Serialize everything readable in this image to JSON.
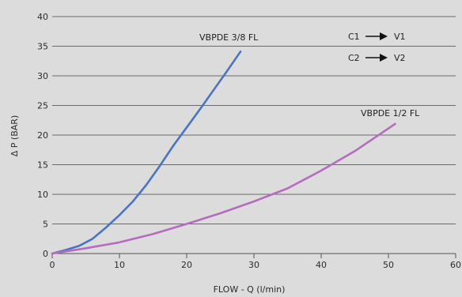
{
  "chart_data": {
    "type": "line",
    "title": "",
    "xlabel": "FLOW - Q (l/min)",
    "ylabel": "Δ P (BAR)",
    "xlim": [
      0,
      60
    ],
    "ylim": [
      0,
      40
    ],
    "x_ticks": [
      0,
      10,
      20,
      30,
      40,
      50,
      60
    ],
    "y_ticks": [
      0,
      5,
      10,
      15,
      20,
      25,
      30,
      35,
      40
    ],
    "grid": "horizontal",
    "series": [
      {
        "name": "VBPDE 3/8 FL",
        "color": "#4a74c4",
        "points": [
          [
            0,
            0
          ],
          [
            2,
            0.6
          ],
          [
            4,
            1.3
          ],
          [
            6,
            2.5
          ],
          [
            8,
            4.4
          ],
          [
            10,
            6.5
          ],
          [
            12,
            8.8
          ],
          [
            14,
            11.6
          ],
          [
            16,
            14.8
          ],
          [
            18,
            18.2
          ],
          [
            20,
            21.3
          ],
          [
            22,
            24.4
          ],
          [
            24,
            27.6
          ],
          [
            26,
            30.8
          ],
          [
            28,
            34.1
          ]
        ]
      },
      {
        "name": "VBPDE 1/2 FL",
        "color": "#b66bc1",
        "points": [
          [
            0,
            0
          ],
          [
            5,
            0.9
          ],
          [
            10,
            1.9
          ],
          [
            15,
            3.3
          ],
          [
            20,
            5.0
          ],
          [
            25,
            6.8
          ],
          [
            30,
            8.8
          ],
          [
            35,
            11.0
          ],
          [
            40,
            14.0
          ],
          [
            45,
            17.3
          ],
          [
            51,
            21.9
          ]
        ]
      }
    ],
    "legend_text": [
      {
        "from": "C1",
        "to": "V1"
      },
      {
        "from": "C2",
        "to": "V2"
      }
    ]
  }
}
